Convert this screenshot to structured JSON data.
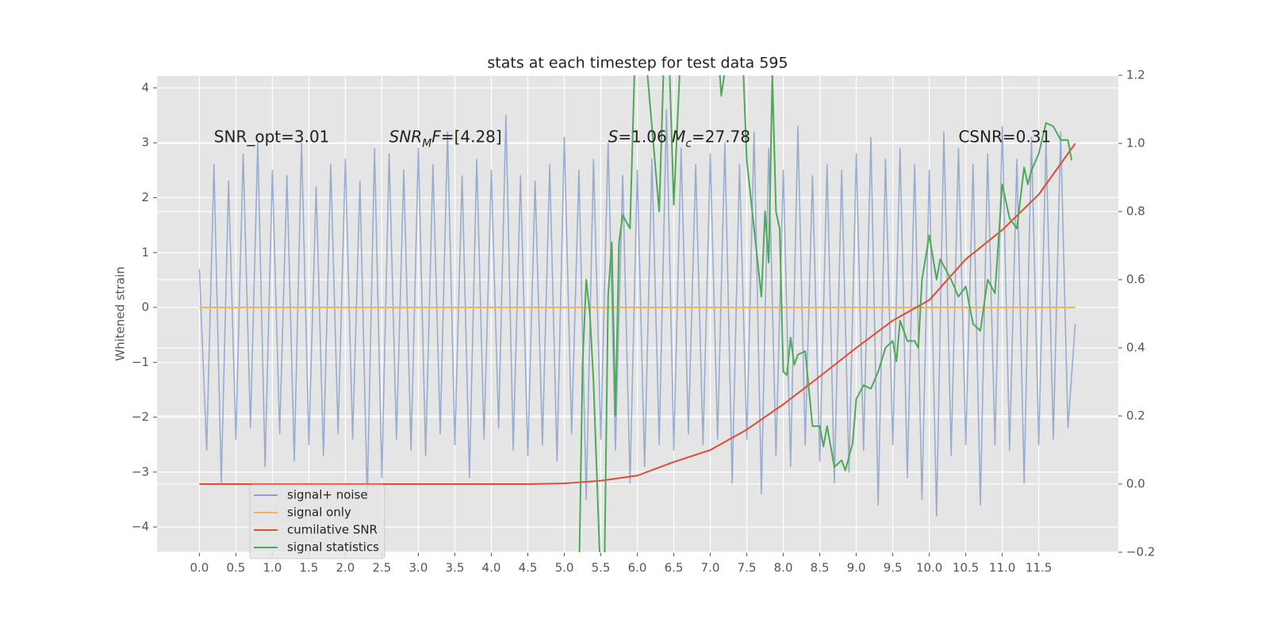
{
  "chart_data": {
    "type": "line",
    "title": "stats at each timestep for test data 595",
    "ylabel": "Whitened strain",
    "xlim": [
      -0.58,
      12.59
    ],
    "ylim": [
      -4.46,
      4.23
    ],
    "y2lim": [
      -0.2,
      1.2
    ],
    "grid": true,
    "legend": "lower left",
    "xticks": [
      {
        "value": 0,
        "label": "0.0"
      },
      0.5,
      {
        "value": 1,
        "label": "1.0"
      },
      1.5,
      {
        "value": 2,
        "label": "2.0"
      },
      2.5,
      {
        "value": 3,
        "label": "3.0"
      },
      3.5,
      {
        "value": 4,
        "label": "4.0"
      },
      4.5,
      {
        "value": 5,
        "label": "5.0"
      },
      5.5,
      {
        "value": 6,
        "label": "6.0"
      },
      6.5,
      {
        "value": 7,
        "label": "7.0"
      },
      7.5,
      {
        "value": 8,
        "label": "8.0"
      },
      8.5,
      {
        "value": 9,
        "label": "9.0"
      },
      9.5,
      {
        "value": 10,
        "label": "10.0"
      },
      10.5,
      {
        "value": 11,
        "label": "11.0"
      },
      11.5
    ],
    "yticks": [
      {
        "value": -4,
        "label": "−4"
      },
      {
        "value": -3,
        "label": "−3"
      },
      {
        "value": -2,
        "label": "−2"
      },
      {
        "value": -1,
        "label": "−1"
      },
      0,
      1,
      2,
      3,
      4
    ],
    "y2ticks": [
      {
        "value": -0.2,
        "label": "−0.2"
      },
      {
        "value": 0,
        "label": "0.0"
      },
      0.2,
      0.4,
      0.6,
      0.8,
      {
        "value": 1,
        "label": "1.0"
      },
      {
        "value": 1.2,
        "label": "1.2"
      }
    ],
    "annotations": [
      {
        "x": 0.2,
        "y": 3.1,
        "segments": [
          {
            "text": "SNR_opt=3.01"
          }
        ]
      },
      {
        "x": 2.6,
        "y": 3.1,
        "segments": [
          {
            "text": "SNR",
            "italic": true
          },
          {
            "text": "M",
            "italic": true,
            "sub": true
          },
          {
            "text": "F",
            "italic": true
          },
          {
            "text": "=[4.28]"
          }
        ]
      },
      {
        "x": 5.6,
        "y": 3.1,
        "segments": [
          {
            "text": "S",
            "italic": true
          },
          {
            "text": "=1.06  "
          },
          {
            "text": "M",
            "italic": true
          },
          {
            "text": "c",
            "italic": true,
            "sub": true
          },
          {
            "text": "=27.78"
          }
        ]
      },
      {
        "x": 10.4,
        "y": 3.1,
        "segments": [
          {
            "text": "CSNR=0.31"
          }
        ]
      }
    ],
    "series": [
      {
        "name": "signal+ noise",
        "color": "#8ca2cc",
        "axis": "y",
        "x": [
          0,
          0.1,
          0.2,
          0.3,
          0.4,
          0.5,
          0.6,
          0.7,
          0.8,
          0.9,
          1,
          1.1,
          1.2,
          1.3,
          1.4,
          1.5,
          1.6,
          1.7,
          1.8,
          1.9,
          2,
          2.1,
          2.2,
          2.3,
          2.4,
          2.5,
          2.6,
          2.7,
          2.8,
          2.9,
          3,
          3.1,
          3.2,
          3.3,
          3.4,
          3.5,
          3.6,
          3.7,
          3.8,
          3.9,
          4,
          4.1,
          4.2,
          4.3,
          4.4,
          4.5,
          4.6,
          4.7,
          4.8,
          4.9,
          5,
          5.1,
          5.2,
          5.3,
          5.4,
          5.5,
          5.6,
          5.7,
          5.8,
          5.9,
          6,
          6.1,
          6.2,
          6.3,
          6.4,
          6.5,
          6.6,
          6.7,
          6.8,
          6.9,
          7,
          7.1,
          7.2,
          7.3,
          7.4,
          7.5,
          7.6,
          7.7,
          7.8,
          7.9,
          8,
          8.1,
          8.2,
          8.3,
          8.4,
          8.5,
          8.6,
          8.7,
          8.8,
          8.9,
          9,
          9.1,
          9.2,
          9.3,
          9.4,
          9.5,
          9.6,
          9.7,
          9.8,
          9.9,
          10,
          10.1,
          10.2,
          10.3,
          10.4,
          10.5,
          10.6,
          10.7,
          10.8,
          10.9,
          11,
          11.1,
          11.2,
          11.3,
          11.4,
          11.5,
          11.6,
          11.7,
          11.8,
          11.9,
          12
        ],
        "values": [
          0.7,
          -2.6,
          2.6,
          -3.2,
          2.3,
          -2.4,
          2.8,
          -2.2,
          3.0,
          -2.9,
          2.5,
          -2.3,
          2.4,
          -2.8,
          3.0,
          -2.5,
          2.2,
          -2.7,
          2.6,
          -2.3,
          2.7,
          -2.4,
          2.3,
          -3.5,
          2.9,
          -3.1,
          2.8,
          -2.4,
          2.5,
          -2.6,
          2.9,
          -2.7,
          2.6,
          -2.3,
          3.2,
          -2.5,
          2.4,
          -3.1,
          2.7,
          -2.4,
          2.5,
          -2.2,
          3.5,
          -2.6,
          2.4,
          -2.7,
          2.3,
          -2.5,
          2.6,
          -2.8,
          3.1,
          -2.3,
          2.5,
          -3.5,
          2.7,
          -2.4,
          3.0,
          -2.6,
          2.4,
          -3.2,
          2.5,
          -2.9,
          2.7,
          -2.5,
          3.6,
          -2.6,
          2.9,
          -2.3,
          2.6,
          -2.5,
          2.8,
          -2.4,
          3.0,
          -3.2,
          2.6,
          -2.4,
          3.2,
          -3.4,
          2.9,
          -2.7,
          2.5,
          -2.9,
          3.3,
          -2.5,
          2.4,
          -2.8,
          2.6,
          -3.2,
          2.5,
          -3.0,
          2.8,
          -2.6,
          3.1,
          -3.6,
          2.7,
          -2.5,
          2.9,
          -3.1,
          2.6,
          -3.5,
          2.5,
          -3.8,
          3.2,
          -2.7,
          2.9,
          -2.5,
          2.6,
          -3.6,
          2.8,
          -2.5,
          3.3,
          -2.6,
          2.7,
          -3.2,
          3.1,
          -2.5,
          3.0,
          -2.4,
          3.2,
          -2.2,
          -0.3
        ]
      },
      {
        "name": "signal only",
        "color": "#f2b552",
        "axis": "y",
        "x": [
          0,
          12
        ],
        "values": [
          0,
          0
        ]
      },
      {
        "name": "cumilative SNR",
        "color": "#e24a33",
        "axis": "y2",
        "x": [
          0,
          0.5,
          1,
          1.5,
          2,
          2.5,
          3,
          3.5,
          4,
          4.5,
          5,
          5.5,
          6,
          6.5,
          7,
          7.5,
          8,
          8.5,
          9,
          9.5,
          10,
          10.5,
          11,
          11.5,
          12
        ],
        "values": [
          0,
          0,
          0,
          0,
          0,
          0,
          0,
          0,
          0,
          0,
          0.002,
          0.01,
          0.025,
          0.065,
          0.1,
          0.16,
          0.234,
          0.316,
          0.4,
          0.48,
          0.54,
          0.66,
          0.746,
          0.85,
          1.0
        ]
      },
      {
        "name": "signal statistics",
        "color": "#4ea85a",
        "axis": "y2",
        "x": [
          5.2,
          5.25,
          5.3,
          5.35,
          5.4,
          5.45,
          5.5,
          5.55,
          5.6,
          5.65,
          5.7,
          5.75,
          5.8,
          5.9,
          6.0,
          6.1,
          6.3,
          6.4,
          6.5,
          6.6,
          7.1,
          7.15,
          7.4,
          7.5,
          7.6,
          7.7,
          7.75,
          7.8,
          7.85,
          7.9,
          7.95,
          8.0,
          8.05,
          8.1,
          8.15,
          8.2,
          8.3,
          8.4,
          8.5,
          8.55,
          8.6,
          8.7,
          8.8,
          8.85,
          8.95,
          9.0,
          9.1,
          9.2,
          9.3,
          9.4,
          9.5,
          9.55,
          9.6,
          9.7,
          9.8,
          9.85,
          9.9,
          10.0,
          10.1,
          10.15,
          10.3,
          10.4,
          10.5,
          10.6,
          10.7,
          10.8,
          10.9,
          11.0,
          11.1,
          11.2,
          11.3,
          11.35,
          11.4,
          11.5,
          11.6,
          11.7,
          11.8,
          11.9,
          11.95
        ],
        "values": [
          -0.3,
          0.35,
          0.6,
          0.5,
          0.3,
          0.0,
          -0.3,
          -0.25,
          0.55,
          0.71,
          0.2,
          0.71,
          0.79,
          0.75,
          1.5,
          1.3,
          0.8,
          1.5,
          0.82,
          1.3,
          1.3,
          1.14,
          1.5,
          0.95,
          0.75,
          0.55,
          0.8,
          0.65,
          1.2,
          0.8,
          0.75,
          0.33,
          0.32,
          0.43,
          0.35,
          0.38,
          0.39,
          0.17,
          0.17,
          0.11,
          0.17,
          0.05,
          0.07,
          0.04,
          0.12,
          0.25,
          0.29,
          0.28,
          0.33,
          0.4,
          0.42,
          0.36,
          0.48,
          0.42,
          0.42,
          0.4,
          0.6,
          0.73,
          0.6,
          0.66,
          0.6,
          0.55,
          0.58,
          0.47,
          0.45,
          0.6,
          0.56,
          0.88,
          0.78,
          0.75,
          0.93,
          0.88,
          0.92,
          0.97,
          1.06,
          1.05,
          1.01,
          1.01,
          0.95
        ]
      }
    ]
  }
}
